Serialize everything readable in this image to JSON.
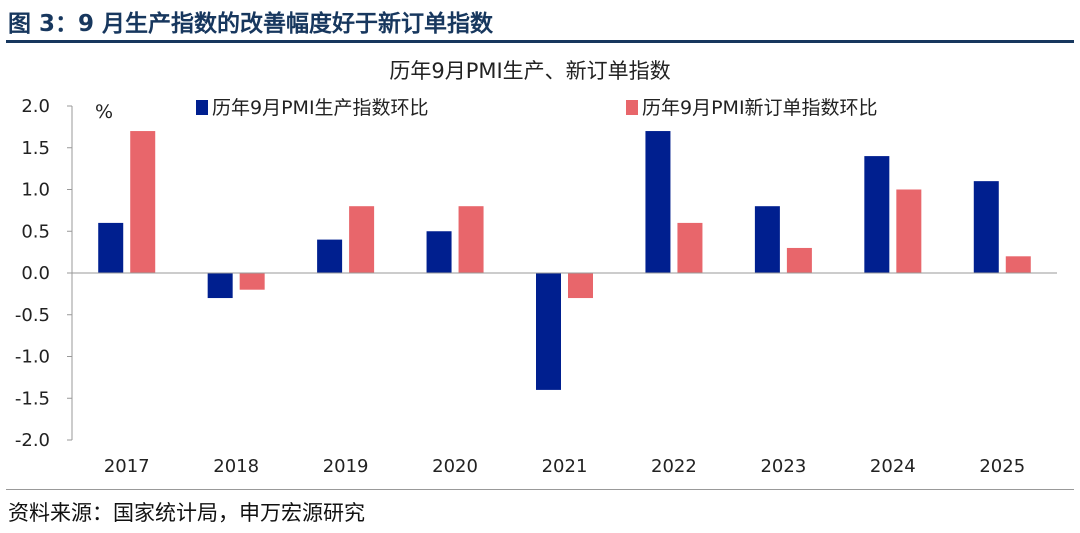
{
  "figure": {
    "title": "图 3：9 月生产指数的改善幅度好于新订单指数",
    "source": "资料来源：国家统计局，申万宏源研究"
  },
  "chart_data": {
    "type": "bar",
    "title": "历年9月PMI生产、新订单指数",
    "ylabel": "%",
    "xlabel": "",
    "categories": [
      "2017",
      "2018",
      "2019",
      "2020",
      "2021",
      "2022",
      "2023",
      "2024",
      "2025"
    ],
    "series": [
      {
        "name": "历年9月PMI生产指数环比",
        "color": "#001f8f",
        "values": [
          0.6,
          -0.3,
          0.4,
          0.5,
          -1.4,
          1.7,
          0.8,
          1.4,
          1.1
        ]
      },
      {
        "name": "历年9月PMI新订单指数环比",
        "color": "#e8666b",
        "values": [
          1.7,
          -0.2,
          0.8,
          0.8,
          -0.3,
          0.6,
          0.3,
          1.0,
          0.2
        ]
      }
    ],
    "ylim": [
      -2.0,
      2.0
    ],
    "yticks": [
      "2.0",
      "1.5",
      "1.0",
      "0.5",
      "0.0",
      "-0.5",
      "-1.0",
      "-1.5",
      "-2.0"
    ],
    "grid": false,
    "legend": "top"
  }
}
